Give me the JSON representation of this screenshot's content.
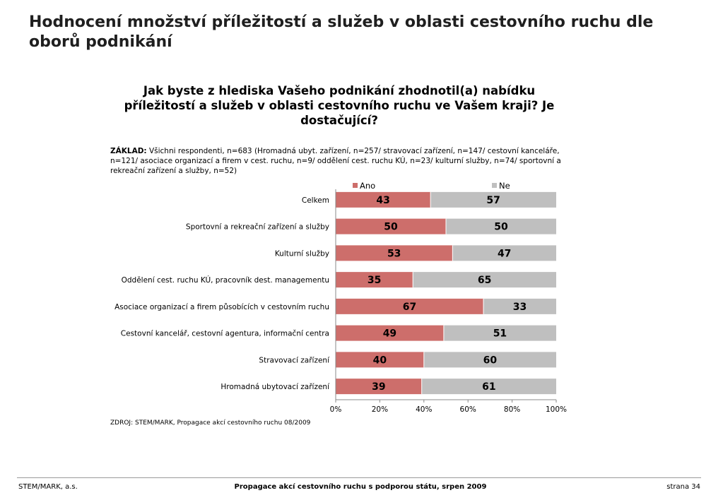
{
  "page": {
    "title": "Hodnocení množství příležitostí a služeb v oblasti cestovního ruchu dle oborů podnikání",
    "question": "Jak byste z hlediska Vašeho podnikání zhodnotil(a) nabídku příležitostí a služeb v oblasti cestovního ruchu ve Vašem kraji? Je dostačující?",
    "basis_label": "ZÁKLAD:",
    "basis_text": "Všichni respondenti, n=683  (Hromadná ubyt. zařízení, n=257/ stravovací zařízení, n=147/ cestovní kanceláře, n=121/ asociace organizací a firem v cest. ruchu, n=9/ oddělení cest. ruchu KÚ, n=23/ kulturní služby, n=74/ sportovní a rekreační zařízení a služby, n=52)",
    "source": "ZDROJ: STEM/MARK, Propagace akcí cestovního ruchu 08/2009"
  },
  "footer": {
    "left": "STEM/MARK, a.s.",
    "center": "Propagace akcí cestovního ruchu s podporou státu, srpen 2009",
    "right": "strana 34"
  },
  "colors": {
    "ano": "#cd6e6b",
    "ne": "#bfbfbf",
    "axis": "#888888"
  },
  "chart_data": {
    "type": "bar",
    "orientation": "horizontal",
    "stacked": true,
    "categories": [
      "Celkem",
      "Sportovní a rekreační zařízení a služby",
      "Kulturní služby",
      "Oddělení cest. ruchu KÚ, pracovník dest. managementu",
      "Asociace organizací a firem působících v cestovním ruchu",
      "Cestovní kancelář, cestovní agentura, informační centra",
      "Stravovací zařízení",
      "Hromadná ubytovací zařízení"
    ],
    "series": [
      {
        "name": "Ano",
        "values": [
          43,
          50,
          53,
          35,
          67,
          49,
          40,
          39
        ]
      },
      {
        "name": "Ne",
        "values": [
          57,
          50,
          47,
          65,
          33,
          51,
          60,
          61
        ]
      }
    ],
    "xlim": [
      0,
      100
    ],
    "x_ticks": [
      "0%",
      "20%",
      "40%",
      "60%",
      "80%",
      "100%"
    ],
    "legend_position": "top",
    "grid": false
  }
}
